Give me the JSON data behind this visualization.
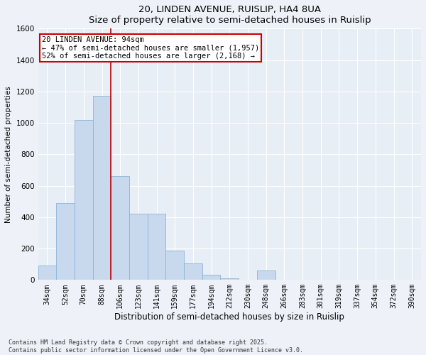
{
  "title": "20, LINDEN AVENUE, RUISLIP, HA4 8UA",
  "subtitle": "Size of property relative to semi-detached houses in Ruislip",
  "xlabel": "Distribution of semi-detached houses by size in Ruislip",
  "ylabel": "Number of semi-detached properties",
  "categories": [
    "34sqm",
    "52sqm",
    "70sqm",
    "88sqm",
    "106sqm",
    "123sqm",
    "141sqm",
    "159sqm",
    "177sqm",
    "194sqm",
    "212sqm",
    "230sqm",
    "248sqm",
    "266sqm",
    "283sqm",
    "301sqm",
    "319sqm",
    "337sqm",
    "354sqm",
    "372sqm",
    "390sqm"
  ],
  "values": [
    90,
    490,
    1020,
    1170,
    660,
    420,
    420,
    185,
    105,
    35,
    10,
    0,
    60,
    0,
    0,
    0,
    0,
    0,
    0,
    0,
    0
  ],
  "bar_color": "#c8d9ee",
  "bar_edge_color": "#8ab4d8",
  "vline_color": "#bb0000",
  "vline_x_index": 3.5,
  "annotation_title": "20 LINDEN AVENUE: 94sqm",
  "annotation_line1": "← 47% of semi-detached houses are smaller (1,957)",
  "annotation_line2": "52% of semi-detached houses are larger (2,168) →",
  "annotation_box_color": "#cc0000",
  "ylim": [
    0,
    1600
  ],
  "yticks": [
    0,
    200,
    400,
    600,
    800,
    1000,
    1200,
    1400,
    1600
  ],
  "footer_line1": "Contains HM Land Registry data © Crown copyright and database right 2025.",
  "footer_line2": "Contains public sector information licensed under the Open Government Licence v3.0.",
  "background_color": "#eef2f8",
  "plot_bg_color": "#e8eef6"
}
